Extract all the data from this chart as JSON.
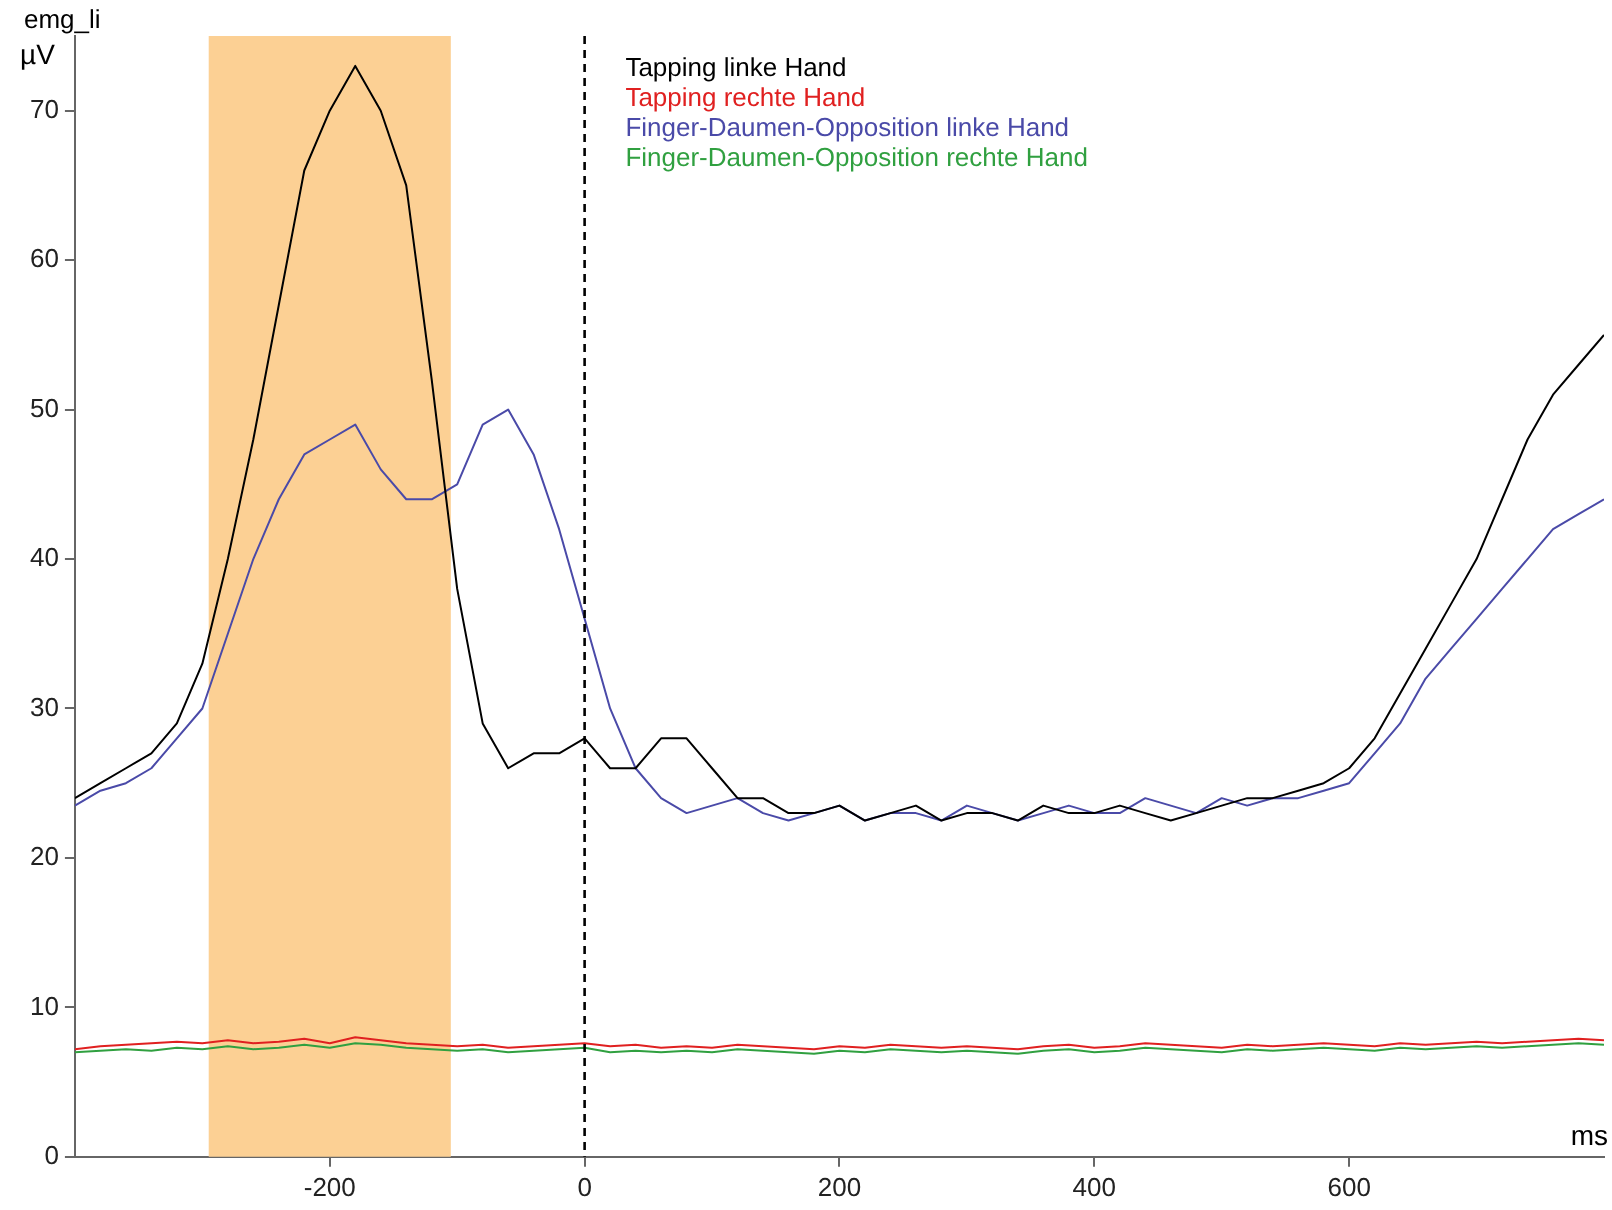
{
  "chart_data": {
    "type": "line",
    "title": "emg_li",
    "ylabel": "µV",
    "xlabel": "ms",
    "x": [
      -400,
      -380,
      -360,
      -340,
      -320,
      -300,
      -280,
      -260,
      -240,
      -220,
      -200,
      -180,
      -160,
      -140,
      -120,
      -100,
      -80,
      -60,
      -40,
      -20,
      0,
      20,
      40,
      60,
      80,
      100,
      120,
      140,
      160,
      180,
      200,
      220,
      240,
      260,
      280,
      300,
      320,
      340,
      360,
      380,
      400,
      420,
      440,
      460,
      480,
      500,
      520,
      540,
      560,
      580,
      600,
      620,
      640,
      660,
      680,
      700,
      720,
      740,
      760,
      780,
      800
    ],
    "series": [
      {
        "name": "Tapping linke Hand",
        "color": "#000000",
        "values": [
          24,
          25,
          26,
          27,
          29,
          33,
          40,
          48,
          57,
          66,
          70,
          73,
          70,
          65,
          52,
          38,
          29,
          26,
          27,
          27,
          28,
          26,
          26,
          28,
          28,
          26,
          24,
          24,
          23,
          23,
          23.5,
          22.5,
          23,
          23.5,
          22.5,
          23,
          23,
          22.5,
          23.5,
          23,
          23,
          23.5,
          23,
          22.5,
          23,
          23.5,
          24,
          24,
          24.5,
          25,
          26,
          28,
          31,
          34,
          37,
          40,
          44,
          48,
          51,
          53,
          55
        ]
      },
      {
        "name": "Tapping rechte Hand",
        "color": "#e02020",
        "values": [
          7.2,
          7.4,
          7.5,
          7.6,
          7.7,
          7.6,
          7.8,
          7.6,
          7.7,
          7.9,
          7.6,
          8,
          7.8,
          7.6,
          7.5,
          7.4,
          7.5,
          7.3,
          7.4,
          7.5,
          7.6,
          7.4,
          7.5,
          7.3,
          7.4,
          7.3,
          7.5,
          7.4,
          7.3,
          7.2,
          7.4,
          7.3,
          7.5,
          7.4,
          7.3,
          7.4,
          7.3,
          7.2,
          7.4,
          7.5,
          7.3,
          7.4,
          7.6,
          7.5,
          7.4,
          7.3,
          7.5,
          7.4,
          7.5,
          7.6,
          7.5,
          7.4,
          7.6,
          7.5,
          7.6,
          7.7,
          7.6,
          7.7,
          7.8,
          7.9,
          7.8
        ]
      },
      {
        "name": "Finger-Daumen-Opposition linke Hand",
        "color": "#4a4aa8",
        "values": [
          23.5,
          24.5,
          25,
          26,
          28,
          30,
          35,
          40,
          44,
          47,
          48,
          49,
          46,
          44,
          44,
          45,
          49,
          50,
          47,
          42,
          36,
          30,
          26,
          24,
          23,
          23.5,
          24,
          23,
          22.5,
          23,
          23.5,
          22.5,
          23,
          23,
          22.5,
          23.5,
          23,
          22.5,
          23,
          23.5,
          23,
          23,
          24,
          23.5,
          23,
          24,
          23.5,
          24,
          24,
          24.5,
          25,
          27,
          29,
          32,
          34,
          36,
          38,
          40,
          42,
          43,
          44
        ]
      },
      {
        "name": "Finger-Daumen-Opposition rechte Hand",
        "color": "#30a040",
        "values": [
          7,
          7.1,
          7.2,
          7.1,
          7.3,
          7.2,
          7.4,
          7.2,
          7.3,
          7.5,
          7.3,
          7.6,
          7.5,
          7.3,
          7.2,
          7.1,
          7.2,
          7,
          7.1,
          7.2,
          7.3,
          7,
          7.1,
          7,
          7.1,
          7,
          7.2,
          7.1,
          7,
          6.9,
          7.1,
          7,
          7.2,
          7.1,
          7,
          7.1,
          7,
          6.9,
          7.1,
          7.2,
          7,
          7.1,
          7.3,
          7.2,
          7.1,
          7,
          7.2,
          7.1,
          7.2,
          7.3,
          7.2,
          7.1,
          7.3,
          7.2,
          7.3,
          7.4,
          7.3,
          7.4,
          7.5,
          7.6,
          7.5
        ]
      }
    ],
    "xlim": [
      -400,
      800
    ],
    "xticks": [
      -200,
      0,
      200,
      400,
      600
    ],
    "ylim": [
      0,
      75
    ],
    "yticks": [
      0,
      10,
      20,
      30,
      40,
      50,
      60,
      70
    ],
    "ref_lines": [
      {
        "axis": "x",
        "value": 0,
        "color": "#000000",
        "line_style": "dashed"
      }
    ],
    "bands": [
      {
        "axis": "x",
        "from": -295,
        "to": -105,
        "color": "#fcd094"
      }
    ],
    "legend": "top",
    "grid": false,
    "marker": "none",
    "line_style": "solid"
  }
}
